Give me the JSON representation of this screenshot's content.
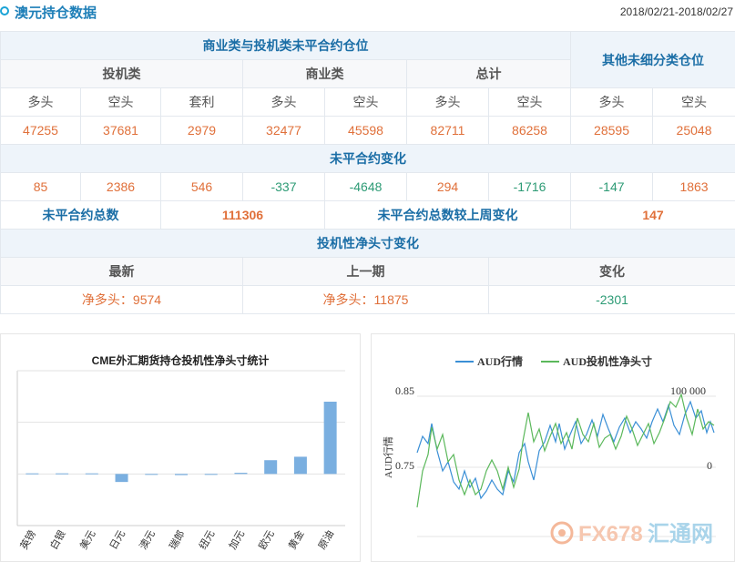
{
  "header": {
    "title": "澳元持仓数据",
    "date_range": "2018/02/21-2018/02/27"
  },
  "table": {
    "section_title": "商业类与投机类未平合约仓位",
    "other_title": "其他未细分类仓位",
    "groups": {
      "spec": "投机类",
      "comm": "商业类",
      "total": "总计"
    },
    "cols": {
      "long": "多头",
      "short": "空头",
      "spread": "套利"
    },
    "positions": [
      "47255",
      "37681",
      "2979",
      "32477",
      "45598",
      "82711",
      "86258",
      "28595",
      "25048"
    ],
    "change_title": "未平合约变化",
    "changes": [
      "85",
      "2386",
      "546",
      "-337",
      "-4648",
      "294",
      "-1716",
      "-147",
      "1863"
    ],
    "oi_total_label": "未平合约总数",
    "oi_total_value": "111306",
    "oi_change_label": "未平合约总数较上周变化",
    "oi_change_value": "147",
    "net_title": "投机性净头寸变化",
    "net_cols": {
      "latest": "最新",
      "previous": "上一期",
      "change": "变化"
    },
    "net_values": {
      "latest": "净多头：9574",
      "previous": "净多头：11875",
      "change": "-2301"
    }
  },
  "chart_data": [
    {
      "type": "bar",
      "title": "CME外汇期货持仓投机性净头寸统计",
      "categories": [
        "英镑",
        "白银",
        "美元",
        "日元",
        "澳元",
        "瑞郎",
        "纽元",
        "加元",
        "欧元",
        "黄金",
        "原油"
      ],
      "values": [
        0.5,
        0.5,
        0.5,
        -7,
        -0.5,
        -1,
        -0.5,
        1,
        12,
        15,
        63
      ],
      "ylim": [
        -45,
        90
      ],
      "grid": true,
      "color": "#7aafe0"
    },
    {
      "type": "line",
      "series": [
        {
          "name": "AUD行情",
          "color": "#3a8fd6"
        },
        {
          "name": "AUD投机性净头寸",
          "color": "#5bb85b"
        }
      ],
      "ylabel": "AUD行情",
      "y_left_ticks": [
        "0.85",
        "0.75"
      ],
      "y_right_ticks": [
        "100 000",
        "0"
      ]
    }
  ],
  "watermark": {
    "brand": "FX678",
    "cn": "汇通网"
  }
}
